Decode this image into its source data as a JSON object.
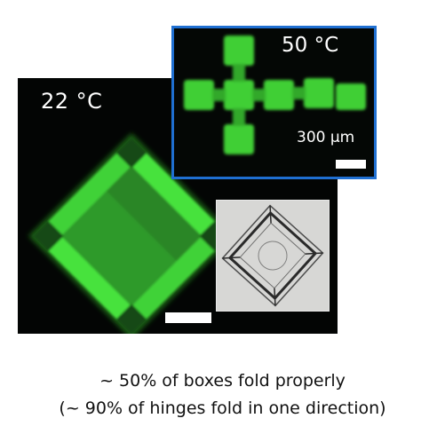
{
  "panels": {
    "folded": {
      "temperature_label": "22 °C"
    },
    "flat": {
      "temperature_label": "50 °C",
      "scale_label": "300 μm"
    }
  },
  "caption": {
    "line1": "~ 50% of boxes fold properly",
    "line2": "(~ 90% of hinges fold in one direction)"
  },
  "colors": {
    "fluorescence_green": "#3fd63a",
    "frame_blue": "#1f6fd1",
    "background_black": "#030504"
  }
}
